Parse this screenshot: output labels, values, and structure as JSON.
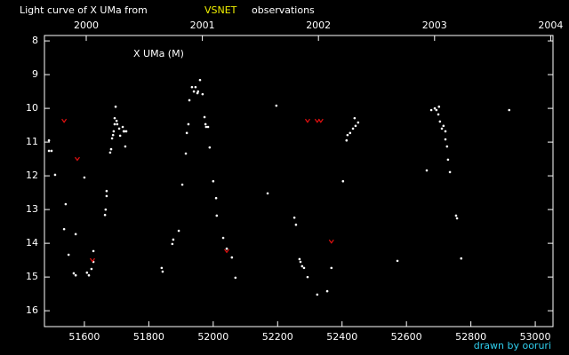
{
  "chart_data": {
    "type": "scatter",
    "title": "Light curve of X UMa from",
    "title_source": "VSNET",
    "title_suffix": "observations",
    "annotation": "X UMa (M)",
    "credit": "drawn by ooruri",
    "xlim": [
      51476,
      53055
    ],
    "xticks": [
      51600,
      51800,
      52000,
      52200,
      52400,
      52600,
      52800,
      53000
    ],
    "x2lim": [
      1999.64,
      2004.02
    ],
    "x2ticks": [
      2000,
      2001,
      2002,
      2003,
      2004
    ],
    "ylim": [
      7.84,
      16.47
    ],
    "y_inverted": true,
    "yticks": [
      8,
      9,
      10,
      11,
      12,
      13,
      14,
      15,
      16
    ],
    "series": [
      {
        "color": "#ffffff",
        "marker": "dot",
        "x": [
          51490,
          51490,
          51498,
          51509,
          51537,
          51542,
          51551,
          51567,
          51573,
          51573,
          51600,
          51608,
          51614,
          51622,
          51628,
          51628,
          51664,
          51666,
          51669,
          51669,
          51680,
          51683,
          51686,
          51689,
          51691,
          51694,
          51694,
          51697,
          51700,
          51702,
          51708,
          51711,
          51719,
          51724,
          51727,
          51722,
          51730,
          51840,
          51843,
          51873,
          51876,
          51893,
          51904,
          51915,
          51918,
          51923,
          51926,
          51934,
          51940,
          51945,
          51951,
          51953,
          51959,
          51967,
          51973,
          51976,
          51978,
          51984,
          51989,
          52000,
          52009,
          52011,
          52031,
          52042,
          52058,
          52069,
          52169,
          52196,
          52252,
          52257,
          52268,
          52271,
          52276,
          52282,
          52293,
          52323,
          52354,
          52367,
          52403,
          52414,
          52417,
          52425,
          52434,
          52439,
          52442,
          52450,
          52572,
          52663,
          52677,
          52688,
          52693,
          52699,
          52701,
          52704,
          52710,
          52715,
          52721,
          52721,
          52726,
          52729,
          52735,
          52754,
          52757,
          52770,
          52919
        ],
        "values": [
          10.95,
          11.26,
          11.26,
          11.97,
          13.58,
          12.84,
          14.34,
          14.89,
          14.95,
          13.73,
          12.05,
          14.87,
          14.95,
          14.76,
          14.23,
          14.55,
          13.16,
          13.0,
          12.6,
          12.45,
          11.31,
          11.21,
          10.89,
          10.79,
          10.68,
          10.47,
          10.29,
          9.95,
          10.37,
          10.47,
          10.6,
          10.81,
          10.55,
          10.68,
          11.13,
          10.68,
          10.68,
          14.73,
          14.84,
          14.02,
          13.89,
          13.63,
          12.26,
          11.34,
          10.73,
          10.47,
          9.76,
          9.37,
          9.5,
          9.37,
          9.55,
          9.5,
          9.16,
          9.58,
          10.26,
          10.47,
          10.55,
          10.55,
          11.16,
          12.16,
          12.66,
          13.18,
          13.84,
          14.16,
          14.42,
          15.02,
          12.52,
          9.92,
          13.24,
          13.45,
          14.47,
          14.55,
          14.68,
          14.73,
          15.0,
          15.52,
          15.42,
          14.73,
          12.16,
          10.95,
          10.79,
          10.73,
          10.6,
          10.29,
          10.52,
          10.42,
          14.52,
          11.84,
          10.05,
          10.0,
          10.05,
          10.18,
          9.95,
          10.39,
          10.6,
          10.52,
          10.68,
          10.92,
          11.13,
          11.52,
          11.89,
          13.18,
          13.26,
          14.45,
          10.05
        ]
      },
      {
        "color": "#e01010",
        "marker": "chevron",
        "x": [
          51537,
          51578,
          51625,
          52042,
          52293,
          52323,
          52334,
          52367
        ],
        "values": [
          10.37,
          11.5,
          14.5,
          14.23,
          10.37,
          10.37,
          10.37,
          13.95
        ]
      }
    ]
  }
}
